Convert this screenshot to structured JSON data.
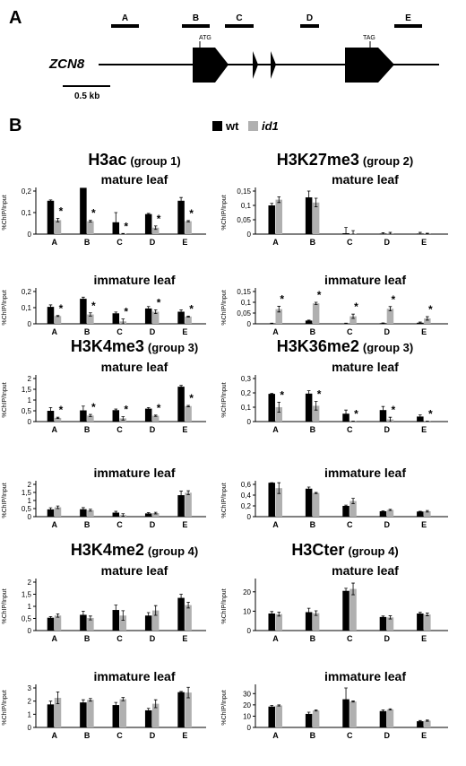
{
  "panel_labels": {
    "a": "A",
    "b": "B"
  },
  "gene": {
    "name": "ZCN8",
    "atg_label": "ATG",
    "tag_label": "TAG",
    "scale_label": "0.5 kb",
    "regions": [
      "A",
      "B",
      "C",
      "D",
      "E"
    ]
  },
  "legend": {
    "wt": "wt",
    "id1": "id1"
  },
  "colors": {
    "wt": "#000000",
    "id1": "#b0b0b0"
  },
  "groups": [
    {
      "mark": "H3ac",
      "group": "(group 1)"
    },
    {
      "mark": "H3K27me3",
      "group": "(group 2)"
    },
    {
      "mark": "H3K4me3",
      "group": "(group 3)"
    },
    {
      "mark": "H3K36me2",
      "group": "(group 3)"
    },
    {
      "mark": "H3K4me2",
      "group": "(group 4)"
    },
    {
      "mark": "H3Cter",
      "group": "(group 4)"
    }
  ],
  "chart_data": [
    {
      "type": "bar",
      "title": "mature leaf",
      "ylabel": "%ChIP/Input",
      "categories": [
        "A",
        "B",
        "C",
        "D",
        "E"
      ],
      "yticks": [
        "0",
        "0,1",
        "0,2"
      ],
      "ylim": [
        0,
        0.2
      ],
      "series": [
        {
          "name": "wt",
          "values": [
            0.155,
            0.215,
            0.055,
            0.093,
            0.155
          ],
          "errors": [
            0.004,
            0.015,
            0.045,
            0.003,
            0.015
          ]
        },
        {
          "name": "id1",
          "values": [
            0.065,
            0.06,
            0.002,
            0.03,
            0.06
          ],
          "errors": [
            0.008,
            0.004,
            0.001,
            0.008,
            0.003
          ]
        }
      ],
      "significant": [
        "A",
        "B",
        "C",
        "D",
        "E"
      ]
    },
    {
      "type": "bar",
      "title": "immature leaf",
      "ylabel": "%ChIP/Input",
      "categories": [
        "A",
        "B",
        "C",
        "D",
        "E"
      ],
      "yticks": [
        "0",
        "0,1",
        "0,2"
      ],
      "ylim": [
        0,
        0.2
      ],
      "series": [
        {
          "name": "wt",
          "values": [
            0.105,
            0.155,
            0.065,
            0.095,
            0.075
          ],
          "errors": [
            0.012,
            0.01,
            0.008,
            0.012,
            0.012
          ]
        },
        {
          "name": "id1",
          "values": [
            0.048,
            0.058,
            0.015,
            0.075,
            0.045
          ],
          "errors": [
            0.003,
            0.01,
            0.015,
            0.012,
            0.003
          ]
        }
      ],
      "significant": [
        "A",
        "B",
        "C",
        "D",
        "E"
      ]
    },
    {
      "type": "bar",
      "title": "mature leaf",
      "ylabel": "%ChIP/Input",
      "categories": [
        "A",
        "B",
        "C",
        "D",
        "E"
      ],
      "yticks": [
        "0",
        "0,05",
        "0,1",
        "0,15"
      ],
      "ylim": [
        0,
        0.15
      ],
      "series": [
        {
          "name": "wt",
          "values": [
            0.1,
            0.128,
            0.003,
            0.002,
            0.002
          ],
          "errors": [
            0.007,
            0.022,
            0.02,
            0.003,
            0.004
          ]
        },
        {
          "name": "id1",
          "values": [
            0.12,
            0.11,
            0.002,
            0.003,
            0.001
          ],
          "errors": [
            0.01,
            0.015,
            0.01,
            0.003,
            0.002
          ]
        }
      ],
      "significant": []
    },
    {
      "type": "bar",
      "title": "immature leaf",
      "ylabel": "%ChIP/Input",
      "categories": [
        "A",
        "B",
        "C",
        "D",
        "E"
      ],
      "yticks": [
        "0",
        "0,05",
        "0,1",
        "0,15"
      ],
      "ylim": [
        0,
        0.15
      ],
      "series": [
        {
          "name": "wt",
          "values": [
            0.002,
            0.015,
            0.002,
            0.003,
            0.005
          ],
          "errors": [
            0.001,
            0.002,
            0.001,
            0.001,
            0.003
          ]
        },
        {
          "name": "id1",
          "values": [
            0.068,
            0.095,
            0.035,
            0.07,
            0.025
          ],
          "errors": [
            0.013,
            0.005,
            0.01,
            0.01,
            0.008
          ]
        }
      ],
      "significant": [
        "A",
        "B",
        "C",
        "D",
        "E"
      ]
    },
    {
      "type": "bar",
      "title": "mature leaf",
      "ylabel": "%ChIP/Input",
      "categories": [
        "A",
        "B",
        "C",
        "D",
        "E"
      ],
      "yticks": [
        "0",
        "0,5",
        "1",
        "1,5",
        "2"
      ],
      "ylim": [
        0,
        2
      ],
      "series": [
        {
          "name": "wt",
          "values": [
            0.5,
            0.52,
            0.53,
            0.6,
            1.62
          ],
          "errors": [
            0.15,
            0.2,
            0.05,
            0.05,
            0.06
          ]
        },
        {
          "name": "id1",
          "values": [
            0.17,
            0.28,
            0.15,
            0.27,
            0.72
          ],
          "errors": [
            0.03,
            0.05,
            0.08,
            0.03,
            0.03
          ]
        }
      ],
      "significant": [
        "A",
        "B",
        "C",
        "D",
        "E"
      ]
    },
    {
      "type": "bar",
      "title": "immature leaf",
      "ylabel": "%ChIP/Input",
      "categories": [
        "A",
        "B",
        "C",
        "D",
        "E"
      ],
      "yticks": [
        "0",
        "0,5",
        "1",
        "1,5",
        "2"
      ],
      "ylim": [
        0,
        2
      ],
      "series": [
        {
          "name": "wt",
          "values": [
            0.45,
            0.46,
            0.25,
            0.2,
            1.33
          ],
          "errors": [
            0.1,
            0.1,
            0.08,
            0.05,
            0.25
          ]
        },
        {
          "name": "id1",
          "values": [
            0.58,
            0.4,
            0.1,
            0.22,
            1.48
          ],
          "errors": [
            0.08,
            0.06,
            0.08,
            0.05,
            0.12
          ]
        }
      ],
      "significant": []
    },
    {
      "type": "bar",
      "title": "mature leaf",
      "ylabel": "%ChIP/Input",
      "categories": [
        "A",
        "B",
        "C",
        "D",
        "E"
      ],
      "yticks": [
        "0",
        "0,1",
        "0,2",
        "0,3"
      ],
      "ylim": [
        0,
        0.3
      ],
      "series": [
        {
          "name": "wt",
          "values": [
            0.193,
            0.195,
            0.055,
            0.08,
            0.035
          ],
          "errors": [
            0.003,
            0.02,
            0.025,
            0.025,
            0.012
          ]
        },
        {
          "name": "id1",
          "values": [
            0.1,
            0.11,
            0.002,
            0.015,
            0.002
          ],
          "errors": [
            0.035,
            0.03,
            0.001,
            0.015,
            0.001
          ]
        }
      ],
      "significant": [
        "A",
        "B",
        "C",
        "D",
        "E"
      ]
    },
    {
      "type": "bar",
      "title": "immature leaf",
      "ylabel": "%ChIP/Input",
      "categories": [
        "A",
        "B",
        "C",
        "D",
        "E"
      ],
      "yticks": [
        "0",
        "0,2",
        "0,4",
        "0,6"
      ],
      "ylim": [
        0,
        0.6
      ],
      "series": [
        {
          "name": "wt",
          "values": [
            0.63,
            0.52,
            0.2,
            0.1,
            0.095
          ],
          "errors": [
            0.005,
            0.03,
            0.015,
            0.005,
            0.005
          ]
        },
        {
          "name": "id1",
          "values": [
            0.53,
            0.44,
            0.29,
            0.125,
            0.1
          ],
          "errors": [
            0.1,
            0.01,
            0.05,
            0.01,
            0.015
          ]
        }
      ],
      "significant": []
    },
    {
      "type": "bar",
      "title": "mature leaf",
      "ylabel": "%ChIP/Input",
      "categories": [
        "A",
        "B",
        "C",
        "D",
        "E"
      ],
      "yticks": [
        "0",
        "0,5",
        "1",
        "1,5",
        "2"
      ],
      "ylim": [
        0,
        2
      ],
      "series": [
        {
          "name": "wt",
          "values": [
            0.53,
            0.65,
            0.85,
            0.62,
            1.35
          ],
          "errors": [
            0.05,
            0.15,
            0.2,
            0.12,
            0.15
          ]
        },
        {
          "name": "id1",
          "values": [
            0.62,
            0.52,
            0.62,
            0.83,
            1.05
          ],
          "errors": [
            0.07,
            0.08,
            0.2,
            0.2,
            0.12
          ]
        }
      ],
      "significant": []
    },
    {
      "type": "bar",
      "title": "immature leaf",
      "ylabel": "%ChIP/Input",
      "categories": [
        "A",
        "B",
        "C",
        "D",
        "E"
      ],
      "yticks": [
        "0",
        "1",
        "2",
        "3"
      ],
      "ylim": [
        0,
        3
      ],
      "series": [
        {
          "name": "wt",
          "values": [
            1.75,
            1.9,
            1.7,
            1.3,
            2.68
          ],
          "errors": [
            0.25,
            0.2,
            0.2,
            0.15,
            0.05
          ]
        },
        {
          "name": "id1",
          "values": [
            2.25,
            2.1,
            2.15,
            1.8,
            2.65
          ],
          "errors": [
            0.45,
            0.1,
            0.12,
            0.3,
            0.4
          ]
        }
      ],
      "significant": []
    },
    {
      "type": "bar",
      "title": "mature leaf",
      "ylabel": "%ChIP/Input",
      "categories": [
        "A",
        "B",
        "C",
        "D",
        "E"
      ],
      "yticks": [
        "0",
        "10",
        "20"
      ],
      "ylim": [
        0,
        25
      ],
      "series": [
        {
          "name": "wt",
          "values": [
            8.8,
            9.5,
            20.5,
            7,
            8.8
          ],
          "errors": [
            1,
            2,
            1.3,
            0.5,
            0.6
          ]
        },
        {
          "name": "id1",
          "values": [
            8.5,
            9,
            21.5,
            6.8,
            8.3
          ],
          "errors": [
            1,
            1.2,
            3,
            0.8,
            0.7
          ]
        }
      ],
      "significant": []
    },
    {
      "type": "bar",
      "title": "immature leaf",
      "ylabel": "%ChIP/Input",
      "categories": [
        "A",
        "B",
        "C",
        "D",
        "E"
      ],
      "yticks": [
        "0",
        "10",
        "20",
        "30"
      ],
      "ylim": [
        0,
        35
      ],
      "series": [
        {
          "name": "wt",
          "values": [
            18.5,
            12,
            25,
            14.5,
            5.5
          ],
          "errors": [
            1,
            1.5,
            10,
            1,
            0.6
          ]
        },
        {
          "name": "id1",
          "values": [
            19.5,
            15,
            23,
            16,
            6
          ],
          "errors": [
            0.5,
            0.5,
            0.5,
            0.5,
            0.5
          ]
        }
      ],
      "significant": []
    }
  ]
}
